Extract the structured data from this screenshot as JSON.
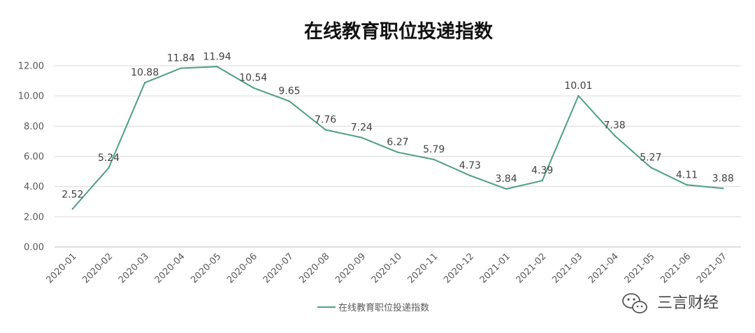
{
  "chart_data": {
    "type": "line",
    "title": "在线教育职位投递指数",
    "xlabel": "",
    "ylabel": "",
    "categories": [
      "2020-01",
      "2020-02",
      "2020-03",
      "2020-04",
      "2020-05",
      "2020-06",
      "2020-07",
      "2020-08",
      "2020-09",
      "2020-10",
      "2020-11",
      "2020-12",
      "2021-01",
      "2021-02",
      "2021-03",
      "2021-04",
      "2021-05",
      "2021-06",
      "2021-07"
    ],
    "series": [
      {
        "name": "在线教育职位投递指数",
        "values": [
          2.52,
          5.24,
          10.88,
          11.84,
          11.94,
          10.54,
          9.65,
          7.76,
          7.24,
          6.27,
          5.79,
          4.73,
          3.84,
          4.39,
          10.01,
          7.38,
          5.27,
          4.11,
          3.88
        ],
        "labels": [
          "2.52",
          "5.24",
          "10.88",
          "11.84",
          "11.94",
          "10.54",
          "9.65",
          "7.76",
          "7.24",
          "6.27",
          "5.79",
          "4.73",
          "3.84",
          "4.39",
          "10.01",
          "7.38",
          "5.27",
          "4.11",
          "3.88"
        ],
        "color": "#4E9F80"
      }
    ],
    "ylim": [
      0,
      12
    ],
    "yticks": [
      "0.00",
      "2.00",
      "4.00",
      "6.00",
      "8.00",
      "10.00",
      "12.00"
    ],
    "grid": true,
    "legend_position": "bottom-center"
  },
  "watermark": {
    "text": "三言财经",
    "icon": "wechat-icon"
  },
  "colors": {
    "line": "#4E9F80",
    "grid": "#D9D9D9",
    "axis": "#BFBFBF",
    "text": "#595959"
  }
}
